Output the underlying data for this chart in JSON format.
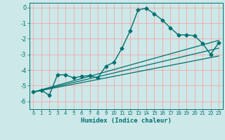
{
  "title": "",
  "xlabel": "Humidex (Indice chaleur)",
  "ylabel": "",
  "bg_color": "#cce8e8",
  "grid_color": "#ff9999",
  "line_color": "#007070",
  "xlim": [
    -0.5,
    23.5
  ],
  "ylim": [
    -6.5,
    0.3
  ],
  "yticks": [
    0,
    -1,
    -2,
    -3,
    -4,
    -5,
    -6
  ],
  "xticks": [
    0,
    1,
    2,
    3,
    4,
    5,
    6,
    7,
    8,
    9,
    10,
    11,
    12,
    13,
    14,
    15,
    16,
    17,
    18,
    19,
    20,
    21,
    22,
    23
  ],
  "series": [
    {
      "x": [
        0,
        1,
        2,
        3,
        4,
        5,
        6,
        7,
        8,
        9,
        10,
        11,
        12,
        13,
        14,
        15,
        16,
        17,
        18,
        19,
        20,
        21,
        22,
        23
      ],
      "y": [
        -5.4,
        -5.3,
        -5.6,
        -4.3,
        -4.3,
        -4.5,
        -4.4,
        -4.35,
        -4.5,
        -3.75,
        -3.5,
        -2.6,
        -1.5,
        -0.15,
        -0.05,
        -0.4,
        -0.8,
        -1.3,
        -1.75,
        -1.75,
        -1.8,
        -2.3,
        -3.0,
        -2.25
      ],
      "marker": "D",
      "markersize": 2.5,
      "linewidth": 1.0
    },
    {
      "x": [
        0,
        23
      ],
      "y": [
        -5.4,
        -2.1
      ],
      "marker": null,
      "markersize": 0,
      "linewidth": 0.9
    },
    {
      "x": [
        0,
        23
      ],
      "y": [
        -5.4,
        -2.6
      ],
      "marker": null,
      "markersize": 0,
      "linewidth": 0.9
    },
    {
      "x": [
        0,
        23
      ],
      "y": [
        -5.4,
        -3.1
      ],
      "marker": null,
      "markersize": 0,
      "linewidth": 0.9
    }
  ]
}
